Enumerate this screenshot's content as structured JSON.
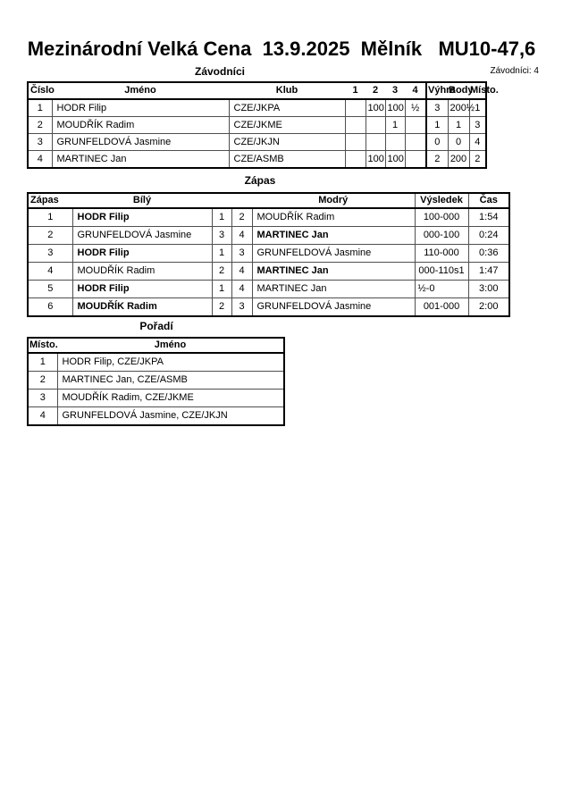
{
  "page": {
    "title": "Mezinárodní Velká Cena  13.9.2025  Mělník   MU10-47,6",
    "competitors_count_label": "Závodníci: 4"
  },
  "competitors_table": {
    "section_title": "Závodníci",
    "headers": {
      "number": "Číslo",
      "name": "Jméno",
      "club": "Klub",
      "rounds": [
        "1",
        "2",
        "3",
        "4"
      ],
      "wins": "Výhra",
      "points": "Body",
      "place": "Místo."
    },
    "rows": [
      {
        "number": "1",
        "name": "HODR Filip",
        "club": "CZE/JKPA",
        "rounds": [
          "",
          "100",
          "100",
          "½"
        ],
        "wins": "3",
        "points": "200½",
        "place": "1"
      },
      {
        "number": "2",
        "name": "MOUDŘÍK Radim",
        "club": "CZE/JKME",
        "rounds": [
          "",
          "",
          "1",
          ""
        ],
        "wins": "1",
        "points": "1",
        "place": "3"
      },
      {
        "number": "3",
        "name": "GRUNFELDOVÁ Jasmine",
        "club": "CZE/JKJN",
        "rounds": [
          "",
          "",
          "",
          ""
        ],
        "wins": "0",
        "points": "0",
        "place": "4"
      },
      {
        "number": "4",
        "name": "MARTINEC Jan",
        "club": "CZE/ASMB",
        "rounds": [
          "",
          "100",
          "100",
          ""
        ],
        "wins": "2",
        "points": "200",
        "place": "2"
      }
    ]
  },
  "matches_table": {
    "section_title": "Zápas",
    "headers": {
      "match": "Zápas",
      "white": "Bílý",
      "blue": "Modrý",
      "result": "Výsledek",
      "time": "Čas"
    },
    "rows": [
      {
        "match": "1",
        "white": "HODR Filip",
        "white_bold": true,
        "white_num": "1",
        "blue_num": "2",
        "blue": "MOUDŘÍK Radim",
        "blue_bold": false,
        "result": "100-000",
        "time": "1:54"
      },
      {
        "match": "2",
        "white": "GRUNFELDOVÁ Jasmine",
        "white_bold": false,
        "white_num": "3",
        "blue_num": "4",
        "blue": "MARTINEC Jan",
        "blue_bold": true,
        "result": "000-100",
        "time": "0:24"
      },
      {
        "match": "3",
        "white": "HODR Filip",
        "white_bold": true,
        "white_num": "1",
        "blue_num": "3",
        "blue": "GRUNFELDOVÁ Jasmine",
        "blue_bold": false,
        "result": "110-000",
        "time": "0:36"
      },
      {
        "match": "4",
        "white": "MOUDŘÍK Radim",
        "white_bold": false,
        "white_num": "2",
        "blue_num": "4",
        "blue": "MARTINEC Jan",
        "blue_bold": true,
        "result": "000-110s1",
        "time": "1:47"
      },
      {
        "match": "5",
        "white": "HODR Filip",
        "white_bold": true,
        "white_num": "1",
        "blue_num": "4",
        "blue": "MARTINEC Jan",
        "blue_bold": false,
        "result": "½-0",
        "time": "3:00"
      },
      {
        "match": "6",
        "white": "MOUDŘÍK Radim",
        "white_bold": true,
        "white_num": "2",
        "blue_num": "3",
        "blue": "GRUNFELDOVÁ Jasmine",
        "blue_bold": false,
        "result": "001-000",
        "time": "2:00"
      }
    ]
  },
  "ranking_table": {
    "section_title": "Pořadí",
    "headers": {
      "place": "Místo.",
      "name": "Jméno"
    },
    "rows": [
      {
        "place": "1",
        "name": "HODR Filip, CZE/JKPA"
      },
      {
        "place": "2",
        "name": "MARTINEC Jan, CZE/ASMB"
      },
      {
        "place": "3",
        "name": "MOUDŘÍK Radim, CZE/JKME"
      },
      {
        "place": "4",
        "name": "GRUNFELDOVÁ Jasmine, CZE/JKJN"
      }
    ]
  }
}
